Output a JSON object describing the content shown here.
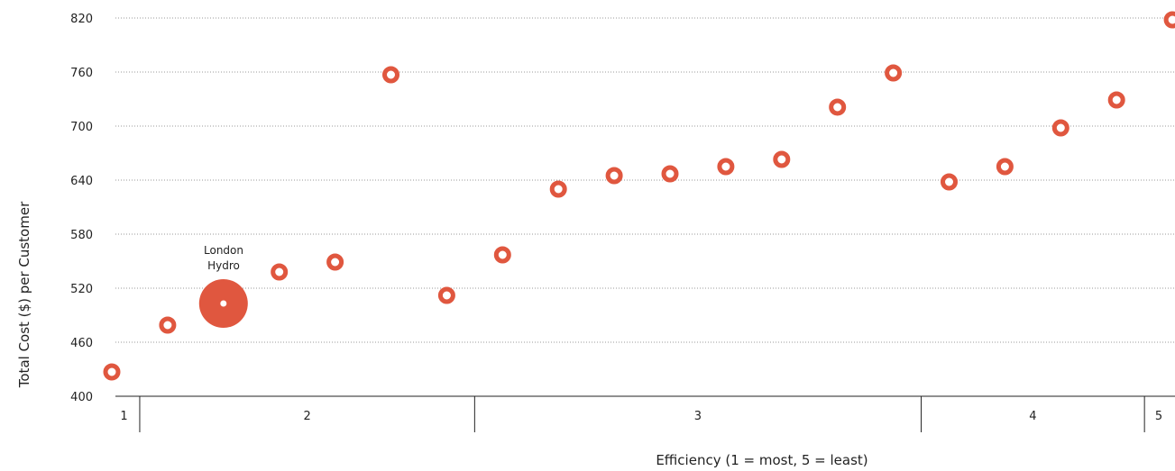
{
  "chart_data": {
    "type": "scatter",
    "xlabel": "Efficiency (1 = most, 5 = least)",
    "ylabel": "Total Cost ($) per Customer",
    "ylim": [
      400,
      820
    ],
    "yticks": [
      "820",
      "760",
      "700",
      "640",
      "580",
      "520",
      "460",
      "400"
    ],
    "grid": "horizontal, dotted",
    "bands": [
      {
        "label": "1",
        "from": 0,
        "to": 1
      },
      {
        "label": "2",
        "from": 1,
        "to": 7
      },
      {
        "label": "3",
        "from": 7,
        "to": 15
      },
      {
        "label": "4",
        "from": 15,
        "to": 19
      },
      {
        "label": "5",
        "from": 19,
        "to": 20
      }
    ],
    "series": [
      {
        "color": "#e0573f",
        "points": [
          {
            "rank": 1,
            "y": 427
          },
          {
            "rank": 2,
            "y": 479
          },
          {
            "rank": 3,
            "y": 503,
            "label": "London Hydro",
            "highlight": true
          },
          {
            "rank": 4,
            "y": 538
          },
          {
            "rank": 5,
            "y": 549
          },
          {
            "rank": 6,
            "y": 757
          },
          {
            "rank": 7,
            "y": 512
          },
          {
            "rank": 8,
            "y": 557
          },
          {
            "rank": 9,
            "y": 630
          },
          {
            "rank": 10,
            "y": 645
          },
          {
            "rank": 11,
            "y": 647
          },
          {
            "rank": 12,
            "y": 655
          },
          {
            "rank": 13,
            "y": 663
          },
          {
            "rank": 14,
            "y": 721
          },
          {
            "rank": 15,
            "y": 759
          },
          {
            "rank": 16,
            "y": 638
          },
          {
            "rank": 17,
            "y": 655
          },
          {
            "rank": 18,
            "y": 698
          },
          {
            "rank": 19,
            "y": 729
          },
          {
            "rank": 20,
            "y": 818
          }
        ]
      }
    ],
    "annotations": [
      {
        "text_line1": "London",
        "text_line2": "Hydro"
      }
    ]
  }
}
